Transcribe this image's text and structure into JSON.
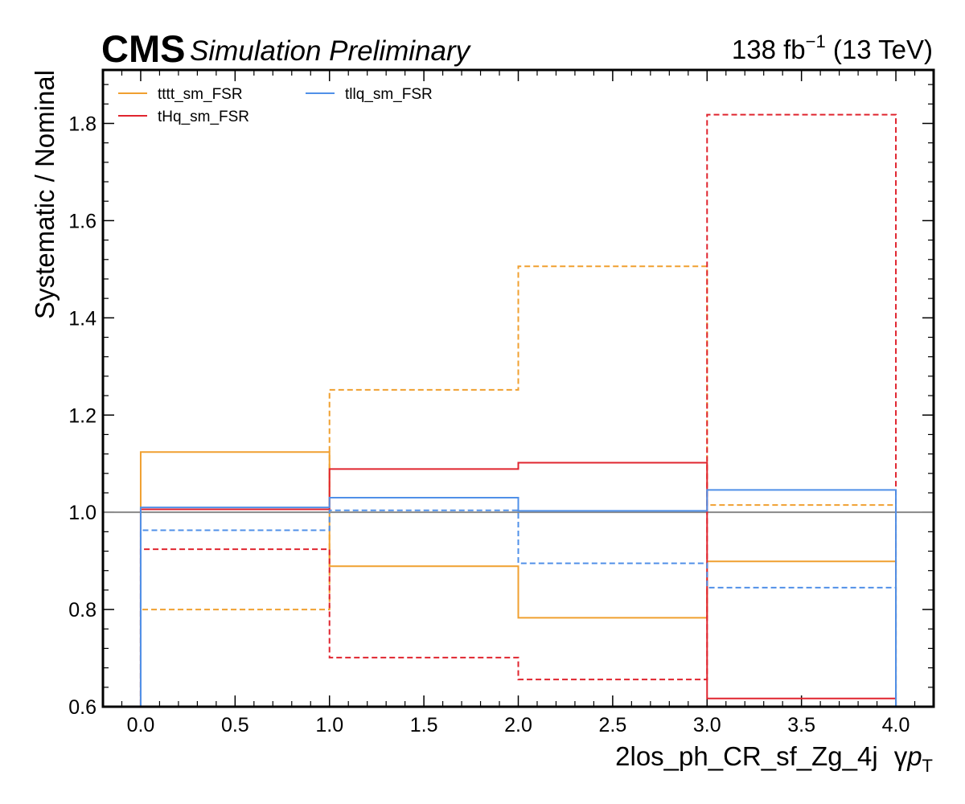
{
  "header": {
    "experiment": "CMS",
    "tag": "Simulation Preliminary",
    "lumi_value": "138 fb",
    "lumi_exponent": "−1",
    "energy": " (13 TeV)"
  },
  "chart_data": {
    "type": "line",
    "step": true,
    "xlabel_main": "2los_ph_CR_sf_Zg_4j",
    "xlabel_gamma": "γ",
    "xlabel_p": "p",
    "xlabel_sub": "T",
    "ylabel": "Systematic / Nominal",
    "xlim": [
      -0.2,
      4.2
    ],
    "ylim": [
      0.6,
      1.91
    ],
    "xticks": [
      0.0,
      0.5,
      1.0,
      1.5,
      2.0,
      2.5,
      3.0,
      3.5,
      4.0
    ],
    "xtick_labels": [
      "0.0",
      "0.5",
      "1.0",
      "1.5",
      "2.0",
      "2.5",
      "3.0",
      "3.5",
      "4.0"
    ],
    "yticks": [
      0.6,
      0.8,
      1.0,
      1.2,
      1.4,
      1.6,
      1.8
    ],
    "ytick_labels": [
      "0.6",
      "0.8",
      "1.0",
      "1.2",
      "1.4",
      "1.6",
      "1.8"
    ],
    "bin_edges": [
      0,
      1,
      2,
      3,
      4
    ],
    "reference_line": 1.0,
    "legend_position": "top-left",
    "series": [
      {
        "name": "tttt_sm_FSR",
        "color": "#f0a030",
        "style": "solid",
        "values": [
          1.124,
          0.889,
          0.783,
          0.899
        ]
      },
      {
        "name": "",
        "color": "#f0a030",
        "style": "dashed",
        "values": [
          0.8,
          1.252,
          1.506,
          1.015
        ]
      },
      {
        "name": "tHq_sm_FSR",
        "color": "#e0252f",
        "style": "solid",
        "values": [
          1.006,
          1.089,
          1.102,
          0.617
        ]
      },
      {
        "name": "",
        "color": "#e0252f",
        "style": "dashed",
        "values": [
          0.924,
          0.701,
          0.656,
          1.818
        ]
      },
      {
        "name": "tllq_sm_FSR",
        "color": "#5090e8",
        "style": "solid",
        "values": [
          1.01,
          1.03,
          1.003,
          1.046
        ]
      },
      {
        "name": "",
        "color": "#5090e8",
        "style": "dashed",
        "values": [
          0.963,
          1.004,
          0.895,
          0.845
        ]
      }
    ],
    "legend": [
      {
        "name": "tttt_sm_FSR",
        "color": "#f0a030"
      },
      {
        "name": "tHq_sm_FSR",
        "color": "#e0252f"
      },
      {
        "name": "tllq_sm_FSR",
        "color": "#5090e8"
      }
    ]
  }
}
